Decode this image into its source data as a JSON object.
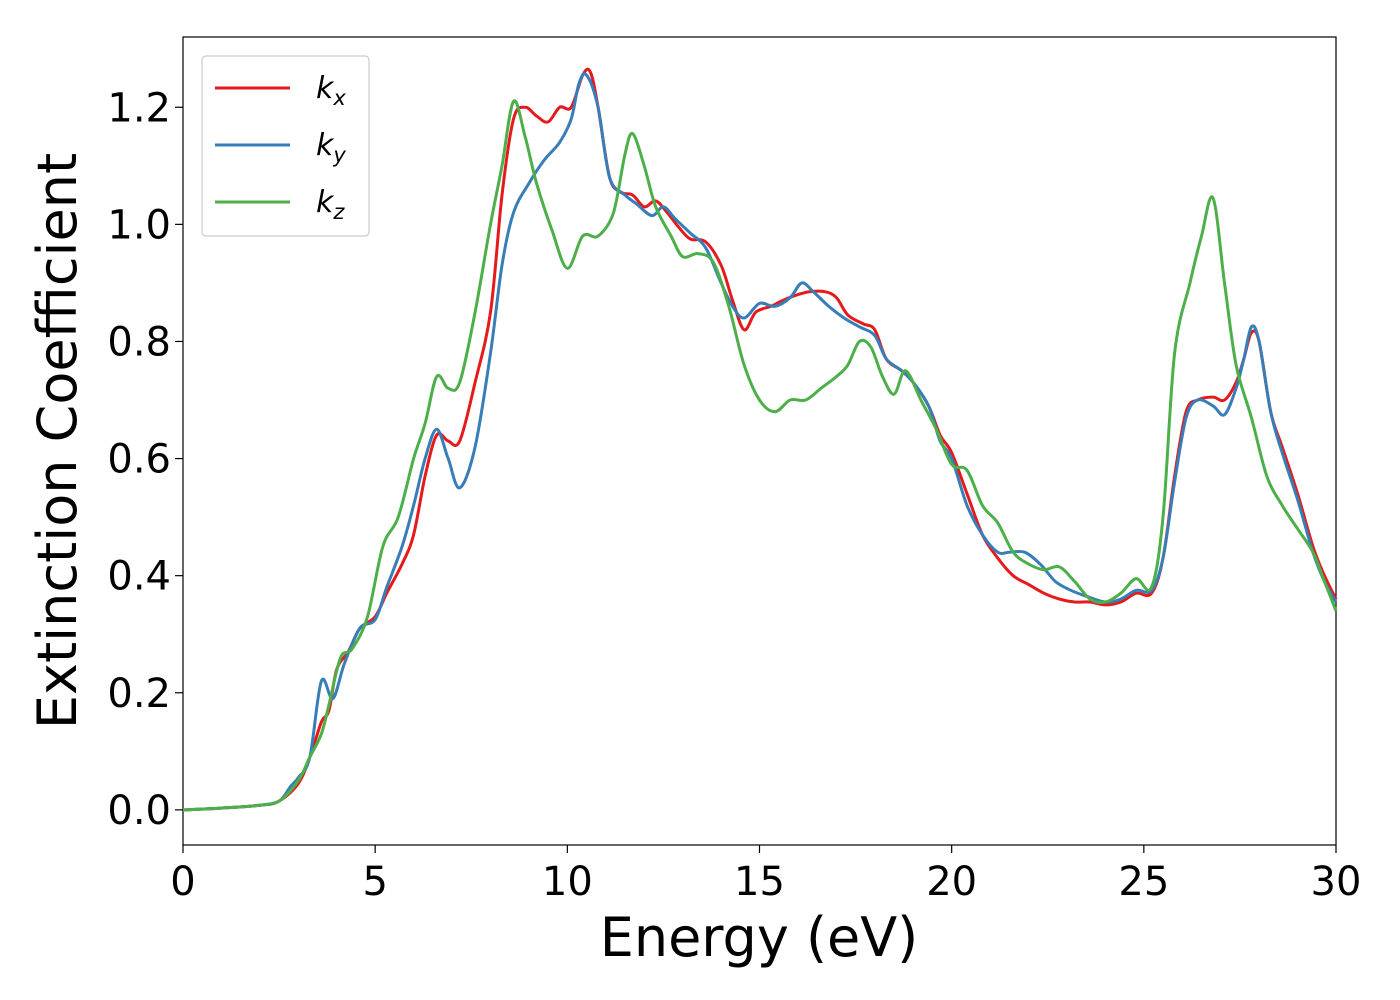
{
  "chart_data": {
    "type": "line",
    "title": "",
    "xlabel": "Energy (eV)",
    "ylabel": "Extinction Coefficient",
    "xlim": [
      0,
      30
    ],
    "ylim": [
      -0.06,
      1.32
    ],
    "xticks": [
      0,
      5,
      10,
      15,
      20,
      25,
      30
    ],
    "yticks": [
      0.0,
      0.2,
      0.4,
      0.6,
      0.8,
      1.0,
      1.2
    ],
    "grid": false,
    "legend_position": "top-left",
    "series": [
      {
        "name": "k",
        "name_sub": "x",
        "color": "#e41a1c",
        "points": [
          [
            0,
            0.0
          ],
          [
            1,
            0.003
          ],
          [
            2,
            0.008
          ],
          [
            2.5,
            0.015
          ],
          [
            3,
            0.045
          ],
          [
            3.3,
            0.09
          ],
          [
            3.6,
            0.15
          ],
          [
            3.8,
            0.17
          ],
          [
            4,
            0.24
          ],
          [
            4.3,
            0.27
          ],
          [
            4.6,
            0.31
          ],
          [
            5,
            0.33
          ],
          [
            5.3,
            0.37
          ],
          [
            5.7,
            0.42
          ],
          [
            6,
            0.47
          ],
          [
            6.3,
            0.57
          ],
          [
            6.6,
            0.64
          ],
          [
            6.9,
            0.63
          ],
          [
            7.2,
            0.63
          ],
          [
            7.6,
            0.73
          ],
          [
            8,
            0.85
          ],
          [
            8.3,
            1.05
          ],
          [
            8.6,
            1.18
          ],
          [
            8.9,
            1.2
          ],
          [
            9.2,
            1.185
          ],
          [
            9.5,
            1.175
          ],
          [
            9.8,
            1.2
          ],
          [
            10.1,
            1.2
          ],
          [
            10.4,
            1.255
          ],
          [
            10.6,
            1.26
          ],
          [
            10.8,
            1.2
          ],
          [
            11.1,
            1.08
          ],
          [
            11.4,
            1.055
          ],
          [
            11.7,
            1.05
          ],
          [
            12,
            1.03
          ],
          [
            12.3,
            1.04
          ],
          [
            12.6,
            1.02
          ],
          [
            12.9,
            0.995
          ],
          [
            13.2,
            0.975
          ],
          [
            13.6,
            0.97
          ],
          [
            14,
            0.93
          ],
          [
            14.3,
            0.87
          ],
          [
            14.6,
            0.82
          ],
          [
            14.9,
            0.85
          ],
          [
            15.3,
            0.86
          ],
          [
            15.6,
            0.87
          ],
          [
            16,
            0.88
          ],
          [
            16.3,
            0.885
          ],
          [
            16.7,
            0.885
          ],
          [
            17,
            0.875
          ],
          [
            17.3,
            0.845
          ],
          [
            17.7,
            0.83
          ],
          [
            18,
            0.82
          ],
          [
            18.3,
            0.77
          ],
          [
            18.7,
            0.75
          ],
          [
            19,
            0.73
          ],
          [
            19.4,
            0.69
          ],
          [
            19.7,
            0.64
          ],
          [
            20,
            0.61
          ],
          [
            20.4,
            0.54
          ],
          [
            20.8,
            0.47
          ],
          [
            21.2,
            0.43
          ],
          [
            21.6,
            0.4
          ],
          [
            22,
            0.385
          ],
          [
            22.4,
            0.37
          ],
          [
            22.8,
            0.36
          ],
          [
            23.2,
            0.355
          ],
          [
            23.6,
            0.355
          ],
          [
            24,
            0.35
          ],
          [
            24.4,
            0.355
          ],
          [
            24.8,
            0.37
          ],
          [
            25.2,
            0.37
          ],
          [
            25.5,
            0.43
          ],
          [
            25.8,
            0.57
          ],
          [
            26.1,
            0.68
          ],
          [
            26.4,
            0.7
          ],
          [
            26.8,
            0.705
          ],
          [
            27.1,
            0.7
          ],
          [
            27.4,
            0.73
          ],
          [
            27.6,
            0.77
          ],
          [
            27.8,
            0.815
          ],
          [
            28,
            0.8
          ],
          [
            28.3,
            0.68
          ],
          [
            28.6,
            0.62
          ],
          [
            29,
            0.54
          ],
          [
            29.4,
            0.45
          ],
          [
            29.7,
            0.4
          ],
          [
            30,
            0.36
          ]
        ]
      },
      {
        "name": "k",
        "name_sub": "y",
        "color": "#377eb8",
        "points": [
          [
            0,
            0.0
          ],
          [
            1,
            0.003
          ],
          [
            2,
            0.008
          ],
          [
            2.5,
            0.015
          ],
          [
            2.8,
            0.04
          ],
          [
            3,
            0.055
          ],
          [
            3.3,
            0.09
          ],
          [
            3.6,
            0.22
          ],
          [
            3.9,
            0.19
          ],
          [
            4.2,
            0.25
          ],
          [
            4.6,
            0.31
          ],
          [
            5,
            0.325
          ],
          [
            5.3,
            0.38
          ],
          [
            5.7,
            0.45
          ],
          [
            6,
            0.52
          ],
          [
            6.3,
            0.6
          ],
          [
            6.6,
            0.65
          ],
          [
            6.9,
            0.6
          ],
          [
            7.2,
            0.55
          ],
          [
            7.6,
            0.62
          ],
          [
            8,
            0.78
          ],
          [
            8.3,
            0.93
          ],
          [
            8.6,
            1.02
          ],
          [
            9,
            1.07
          ],
          [
            9.4,
            1.11
          ],
          [
            9.8,
            1.14
          ],
          [
            10.1,
            1.18
          ],
          [
            10.3,
            1.24
          ],
          [
            10.5,
            1.255
          ],
          [
            10.8,
            1.2
          ],
          [
            11.1,
            1.08
          ],
          [
            11.5,
            1.05
          ],
          [
            11.8,
            1.035
          ],
          [
            12.2,
            1.015
          ],
          [
            12.5,
            1.03
          ],
          [
            12.8,
            1.01
          ],
          [
            13.2,
            0.985
          ],
          [
            13.6,
            0.96
          ],
          [
            14,
            0.9
          ],
          [
            14.3,
            0.86
          ],
          [
            14.6,
            0.84
          ],
          [
            15,
            0.865
          ],
          [
            15.4,
            0.86
          ],
          [
            15.8,
            0.875
          ],
          [
            16.1,
            0.9
          ],
          [
            16.4,
            0.885
          ],
          [
            16.8,
            0.86
          ],
          [
            17.2,
            0.84
          ],
          [
            17.6,
            0.825
          ],
          [
            18,
            0.81
          ],
          [
            18.3,
            0.77
          ],
          [
            18.7,
            0.75
          ],
          [
            19,
            0.73
          ],
          [
            19.4,
            0.69
          ],
          [
            19.7,
            0.63
          ],
          [
            20,
            0.6
          ],
          [
            20.4,
            0.52
          ],
          [
            20.8,
            0.47
          ],
          [
            21.2,
            0.44
          ],
          [
            21.5,
            0.44
          ],
          [
            21.9,
            0.44
          ],
          [
            22.3,
            0.42
          ],
          [
            22.7,
            0.39
          ],
          [
            23.1,
            0.375
          ],
          [
            23.5,
            0.365
          ],
          [
            24,
            0.355
          ],
          [
            24.4,
            0.36
          ],
          [
            24.8,
            0.375
          ],
          [
            25.2,
            0.375
          ],
          [
            25.5,
            0.43
          ],
          [
            25.8,
            0.56
          ],
          [
            26.1,
            0.67
          ],
          [
            26.4,
            0.7
          ],
          [
            26.8,
            0.69
          ],
          [
            27.1,
            0.675
          ],
          [
            27.4,
            0.72
          ],
          [
            27.6,
            0.77
          ],
          [
            27.8,
            0.825
          ],
          [
            28,
            0.8
          ],
          [
            28.3,
            0.68
          ],
          [
            28.6,
            0.61
          ],
          [
            29,
            0.53
          ],
          [
            29.4,
            0.44
          ],
          [
            29.7,
            0.39
          ],
          [
            30,
            0.355
          ]
        ]
      },
      {
        "name": "k",
        "name_sub": "z",
        "color": "#4daf4a",
        "points": [
          [
            0,
            0.0
          ],
          [
            1,
            0.003
          ],
          [
            2,
            0.008
          ],
          [
            2.5,
            0.015
          ],
          [
            3,
            0.05
          ],
          [
            3.3,
            0.09
          ],
          [
            3.6,
            0.13
          ],
          [
            3.8,
            0.18
          ],
          [
            4.1,
            0.26
          ],
          [
            4.4,
            0.275
          ],
          [
            4.8,
            0.33
          ],
          [
            5.2,
            0.45
          ],
          [
            5.6,
            0.5
          ],
          [
            6,
            0.6
          ],
          [
            6.3,
            0.66
          ],
          [
            6.6,
            0.74
          ],
          [
            6.9,
            0.72
          ],
          [
            7.2,
            0.73
          ],
          [
            7.6,
            0.85
          ],
          [
            8,
            1.0
          ],
          [
            8.3,
            1.1
          ],
          [
            8.6,
            1.21
          ],
          [
            8.9,
            1.15
          ],
          [
            9.2,
            1.07
          ],
          [
            9.6,
            0.99
          ],
          [
            10,
            0.925
          ],
          [
            10.4,
            0.98
          ],
          [
            10.8,
            0.98
          ],
          [
            11.2,
            1.02
          ],
          [
            11.5,
            1.12
          ],
          [
            11.7,
            1.155
          ],
          [
            12,
            1.1
          ],
          [
            12.3,
            1.03
          ],
          [
            12.7,
            0.98
          ],
          [
            13,
            0.945
          ],
          [
            13.4,
            0.95
          ],
          [
            13.8,
            0.935
          ],
          [
            14.2,
            0.86
          ],
          [
            14.6,
            0.76
          ],
          [
            15,
            0.7
          ],
          [
            15.4,
            0.68
          ],
          [
            15.8,
            0.7
          ],
          [
            16.2,
            0.7
          ],
          [
            16.6,
            0.72
          ],
          [
            17,
            0.74
          ],
          [
            17.3,
            0.76
          ],
          [
            17.6,
            0.8
          ],
          [
            17.9,
            0.79
          ],
          [
            18.2,
            0.74
          ],
          [
            18.5,
            0.71
          ],
          [
            18.8,
            0.75
          ],
          [
            19.2,
            0.7
          ],
          [
            19.6,
            0.65
          ],
          [
            20,
            0.59
          ],
          [
            20.4,
            0.58
          ],
          [
            20.8,
            0.52
          ],
          [
            21.2,
            0.49
          ],
          [
            21.6,
            0.44
          ],
          [
            22,
            0.42
          ],
          [
            22.4,
            0.41
          ],
          [
            22.8,
            0.415
          ],
          [
            23.2,
            0.39
          ],
          [
            23.6,
            0.36
          ],
          [
            24,
            0.355
          ],
          [
            24.4,
            0.37
          ],
          [
            24.8,
            0.395
          ],
          [
            25.2,
            0.38
          ],
          [
            25.5,
            0.5
          ],
          [
            25.8,
            0.78
          ],
          [
            26.2,
            0.9
          ],
          [
            26.5,
            0.98
          ],
          [
            26.8,
            1.045
          ],
          [
            27.1,
            0.9
          ],
          [
            27.4,
            0.76
          ],
          [
            27.8,
            0.67
          ],
          [
            28.2,
            0.57
          ],
          [
            28.6,
            0.52
          ],
          [
            29,
            0.48
          ],
          [
            29.4,
            0.44
          ],
          [
            29.7,
            0.39
          ],
          [
            30,
            0.34
          ]
        ]
      }
    ]
  }
}
